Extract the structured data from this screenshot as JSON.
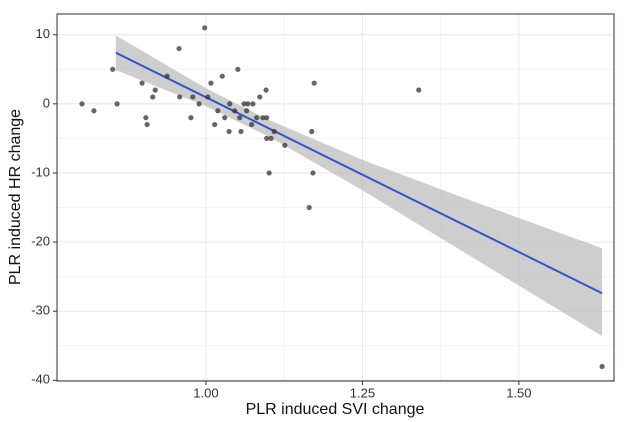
{
  "chart_data": {
    "type": "scatter",
    "x_label": "PLR induced SVI change",
    "y_label": "PLR induced HR change",
    "xlim": [
      0.762,
      1.652
    ],
    "ylim": [
      -40.1,
      13.0
    ],
    "xticks": [
      {
        "value": 1.0,
        "label": "1.00"
      },
      {
        "value": 1.25,
        "label": "1.25"
      },
      {
        "value": 1.5,
        "label": "1.50"
      }
    ],
    "yticks": [
      10,
      0,
      -10,
      -20,
      -30,
      -40
    ],
    "grid": true,
    "points": {
      "color": "#333333",
      "x": [
        0.802,
        0.821,
        0.851,
        0.858,
        0.898,
        0.904,
        0.906,
        0.915,
        0.919,
        0.938,
        0.957,
        0.958,
        0.976,
        0.979,
        0.989,
        0.998,
        1.003,
        1.008,
        1.014,
        1.019,
        1.026,
        1.03,
        1.037,
        1.038,
        1.046,
        1.051,
        1.054,
        1.056,
        1.061,
        1.065,
        1.067,
        1.073,
        1.075,
        1.081,
        1.086,
        1.091,
        1.096,
        1.097,
        1.097,
        1.101,
        1.104,
        1.109,
        1.126,
        1.165,
        1.169,
        1.171,
        1.173,
        1.34,
        1.633
      ],
      "values": [
        0,
        -1,
        5,
        0,
        3,
        -2,
        -3,
        1,
        2,
        4,
        8,
        1,
        -2,
        1,
        0,
        11,
        1,
        3,
        -3,
        -1,
        4,
        -2,
        -4,
        0,
        -1,
        5,
        -2,
        -4,
        0,
        -1,
        0,
        -3,
        0,
        -2,
        1,
        -2,
        2,
        -2,
        -5,
        -10,
        -5,
        -4,
        -6,
        -15,
        -4,
        -10,
        3,
        2,
        -38
      ]
    },
    "fit": {
      "color": "#3355cc",
      "x": [
        0.856,
        1.633
      ],
      "values": [
        7.4,
        -27.4
      ]
    },
    "band": {
      "color": "#bdbdbd",
      "x": [
        0.856,
        1.0,
        1.1,
        1.25,
        1.4,
        1.633
      ],
      "lower": [
        4.9,
        -0.35,
        -4.7,
        -12.5,
        -20.8,
        -33.6
      ],
      "upper": [
        9.9,
        2.25,
        -2.3,
        -8.1,
        -13.2,
        -20.9
      ]
    }
  }
}
